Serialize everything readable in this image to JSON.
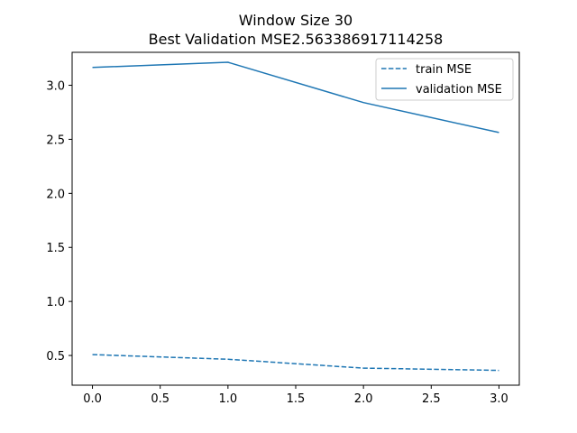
{
  "chart_data": {
    "type": "line",
    "title_line1": "Window Size 30",
    "title_line2": "Best Validation MSE2.563386917114258",
    "xlabel": "",
    "ylabel": "",
    "xlim": [
      -0.15,
      3.15
    ],
    "ylim": [
      0.225,
      3.305
    ],
    "xticks": [
      0.0,
      0.5,
      1.0,
      1.5,
      2.0,
      2.5,
      3.0
    ],
    "xtick_labels": [
      "0.0",
      "0.5",
      "1.0",
      "1.5",
      "2.0",
      "2.5",
      "3.0"
    ],
    "yticks": [
      0.5,
      1.0,
      1.5,
      2.0,
      2.5,
      3.0
    ],
    "ytick_labels": [
      "0.5",
      "1.0",
      "1.5",
      "2.0",
      "2.5",
      "3.0"
    ],
    "grid": false,
    "legend_position": "top-right",
    "colors": {
      "series": "#1f77b4",
      "axis": "#000000"
    },
    "series": [
      {
        "name": "train MSE",
        "style": "dashed",
        "x": [
          0,
          1,
          2,
          3
        ],
        "y": [
          0.508,
          0.465,
          0.383,
          0.362
        ]
      },
      {
        "name": "validation MSE",
        "style": "solid",
        "x": [
          0,
          1,
          2,
          3
        ],
        "y": [
          3.165,
          3.213,
          2.84,
          2.563
        ]
      }
    ]
  }
}
